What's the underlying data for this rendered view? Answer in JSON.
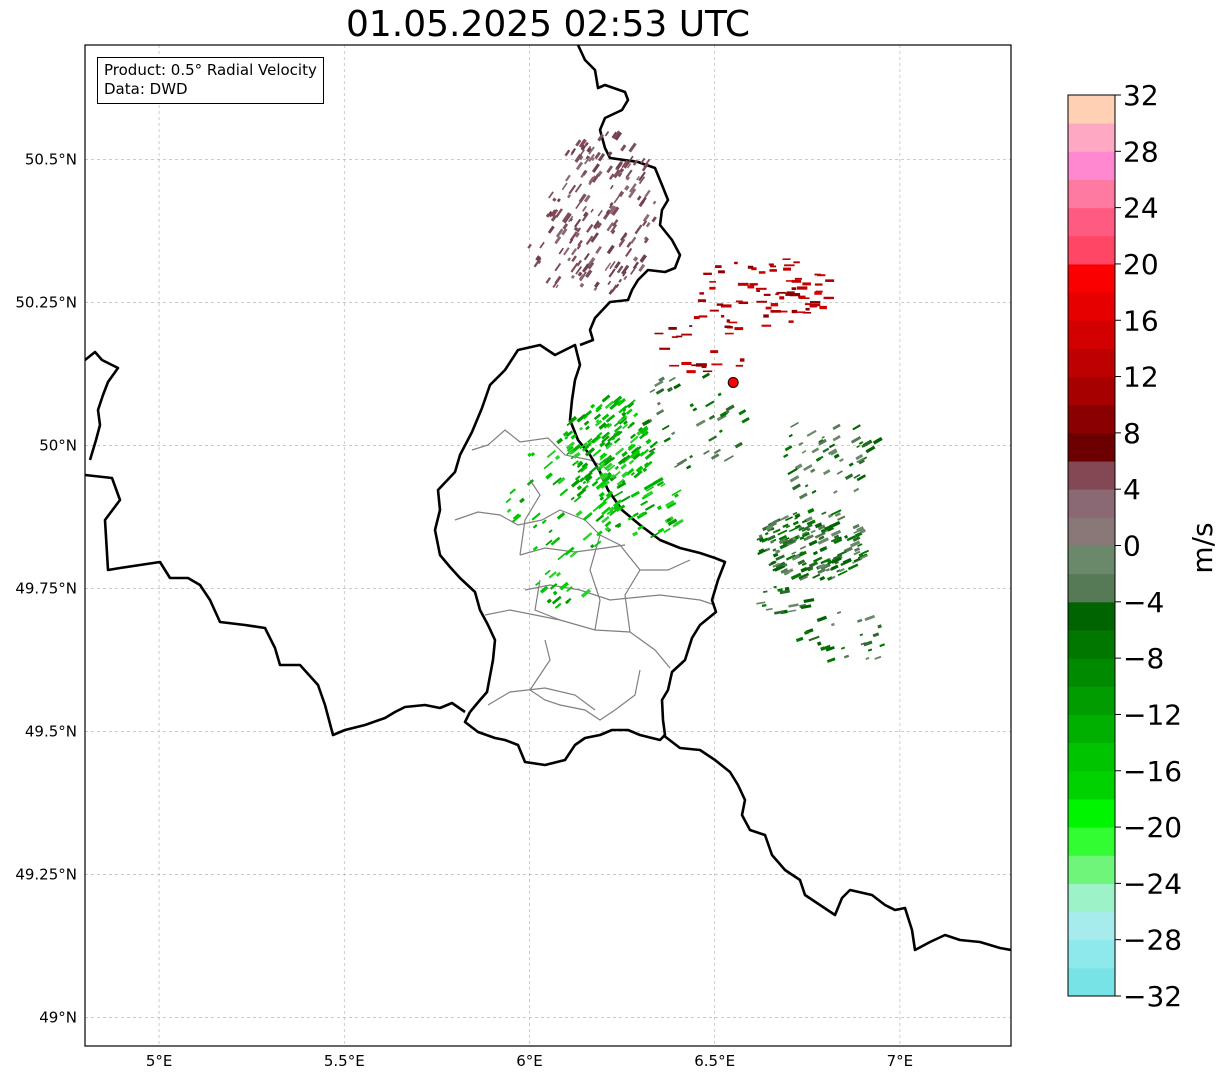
{
  "title": "01.05.2025 02:53 UTC",
  "info_box": {
    "line1": "Product: 0.5° Radial Velocity",
    "line2": "Data: DWD"
  },
  "map": {
    "lon_range": [
      4.8,
      7.3
    ],
    "lat_range": [
      48.95,
      50.7
    ],
    "lon_ticks": [
      {
        "value": 5.0,
        "label": "5°E"
      },
      {
        "value": 5.5,
        "label": "5.5°E"
      },
      {
        "value": 6.0,
        "label": "6°E"
      },
      {
        "value": 6.5,
        "label": "6.5°E"
      },
      {
        "value": 7.0,
        "label": "7°E"
      }
    ],
    "lat_ticks": [
      {
        "value": 49.0,
        "label": "49°N"
      },
      {
        "value": 49.25,
        "label": "49.25°N"
      },
      {
        "value": 49.5,
        "label": "49.5°N"
      },
      {
        "value": 49.75,
        "label": "49.75°N"
      },
      {
        "value": 50.0,
        "label": "50°N"
      },
      {
        "value": 50.25,
        "label": "50.25°N"
      },
      {
        "value": 50.5,
        "label": "50.5°N"
      }
    ],
    "radar_site": {
      "lon": 6.55,
      "lat": 50.11,
      "color": "#ff0000"
    },
    "gridlines": true
  },
  "colorbar": {
    "unit": "m/s",
    "min": -32,
    "max": 32,
    "tick_labels": [
      "32",
      "28",
      "24",
      "20",
      "16",
      "12",
      "8",
      "4",
      "0",
      "−4",
      "−8",
      "−12",
      "−16",
      "−20",
      "−24",
      "−28",
      "−32"
    ],
    "colors_low_to_high": [
      "#78e3e6",
      "#8ee9ec",
      "#a6ecec",
      "#9ef2c8",
      "#6ef57a",
      "#32fd32",
      "#00f500",
      "#00d200",
      "#00c400",
      "#00b000",
      "#009c00",
      "#008a00",
      "#007800",
      "#006500",
      "#567a56",
      "#6a886a",
      "#8a7878",
      "#8a6874",
      "#844854",
      "#6c0000",
      "#8a0000",
      "#a60000",
      "#bd0000",
      "#d20000",
      "#e60000",
      "#fa0000",
      "#ff4664",
      "#ff5a82",
      "#ff7aa0",
      "#ff88d0",
      "#ffa8c4",
      "#ffd0b4"
    ]
  }
}
